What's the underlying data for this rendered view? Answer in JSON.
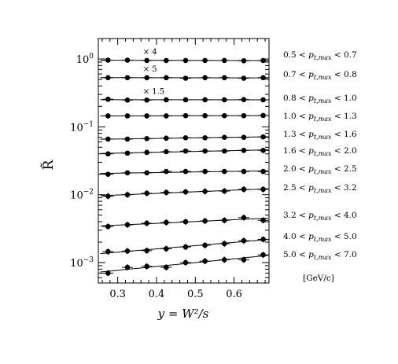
{
  "chart_data": {
    "type": "scatter",
    "title": "",
    "xlabel": "y = W²/s",
    "ylabel": "R̃",
    "xlim": [
      0.25,
      0.69
    ],
    "ylim": [
      0.0005,
      2.0
    ],
    "yscale": "log",
    "grid": false,
    "legend": "right-side text labels",
    "x": [
      0.275,
      0.325,
      0.375,
      0.425,
      0.475,
      0.525,
      0.575,
      0.625,
      0.675
    ],
    "x_tick_labels": [
      "0.3",
      "0.4",
      "0.5",
      "0.6"
    ],
    "x_ticks": [
      0.3,
      0.4,
      0.5,
      0.6
    ],
    "y_tick_labels": [
      {
        "base": "10",
        "exp": "0"
      },
      {
        "base": "10",
        "exp": "−1"
      },
      {
        "base": "10",
        "exp": "−2"
      },
      {
        "base": "10",
        "exp": "−3"
      }
    ],
    "y_ticks": [
      1,
      0.1,
      0.01,
      0.001
    ],
    "units_label": "[GeV/c]",
    "series": [
      {
        "name": "0.5 < p_t,max < 0.7",
        "range_text": "0.5 < ",
        "range_sub": "t,max",
        "range_end": " < 0.7",
        "multiplier": "× 4",
        "values": [
          0.96,
          0.96,
          0.95,
          0.95,
          0.95,
          0.95,
          0.95,
          0.94,
          0.95
        ]
      },
      {
        "name": "0.7 < p_t,max < 0.8",
        "range_text": "0.7 < ",
        "range_sub": "t,max",
        "range_end": " < 0.8",
        "multiplier": "× 5",
        "values": [
          0.53,
          0.53,
          0.53,
          0.53,
          0.52,
          0.53,
          0.53,
          0.52,
          0.53
        ]
      },
      {
        "name": "0.8 < p_t,max < 1.0",
        "range_text": "0.8 < ",
        "range_sub": "t,max",
        "range_end": " < 1.0",
        "multiplier": "× 1.5",
        "values": [
          0.255,
          0.248,
          0.248,
          0.25,
          0.25,
          0.25,
          0.25,
          0.252,
          0.25
        ]
      },
      {
        "name": "1.0 < p_t,max < 1.3",
        "range_text": "1.0 < ",
        "range_sub": "t,max",
        "range_end": " < 1.3",
        "multiplier": "",
        "values": [
          0.145,
          0.145,
          0.145,
          0.145,
          0.146,
          0.146,
          0.146,
          0.146,
          0.147
        ]
      },
      {
        "name": "1.3 < p_t,max < 1.6",
        "range_text": "1.3 < ",
        "range_sub": "t,max",
        "range_end": " < 1.6",
        "multiplier": "",
        "values": [
          0.066,
          0.066,
          0.067,
          0.068,
          0.069,
          0.069,
          0.07,
          0.07,
          0.071
        ]
      },
      {
        "name": "1.6 < p_t,max < 2.0",
        "range_text": "1.6 < ",
        "range_sub": "t,max",
        "range_end": " < 2.0",
        "multiplier": "",
        "values": [
          0.04,
          0.041,
          0.042,
          0.043,
          0.044,
          0.044,
          0.044,
          0.045,
          0.045
        ]
      },
      {
        "name": "2.0 < p_t,max < 2.5",
        "range_text": "2.0 < ",
        "range_sub": "t,max",
        "range_end": " < 2.5",
        "multiplier": "",
        "values": [
          0.02,
          0.021,
          0.021,
          0.022,
          0.022,
          0.022,
          0.022,
          0.022,
          0.022
        ]
      },
      {
        "name": "2.5 < p_t,max < 3.2",
        "range_text": "2.5 < ",
        "range_sub": "t,max",
        "range_end": " < 3.2",
        "multiplier": "",
        "values": [
          0.0095,
          0.01,
          0.0105,
          0.0108,
          0.011,
          0.0112,
          0.0113,
          0.012,
          0.012
        ]
      },
      {
        "name": "3.2 < p_t,max < 4.0",
        "range_text": "3.2 < ",
        "range_sub": "t,max",
        "range_end": " < 4.0",
        "multiplier": "",
        "values": [
          0.0034,
          0.0036,
          0.0038,
          0.0039,
          0.004,
          0.0041,
          0.0042,
          0.0046,
          0.0042
        ]
      },
      {
        "name": "4.0 < p_t,max < 5.0",
        "range_text": "4.0 < ",
        "range_sub": "t,max",
        "range_end": " < 5.0",
        "multiplier": "",
        "values": [
          0.00145,
          0.00148,
          0.0015,
          0.0016,
          0.0017,
          0.0018,
          0.0019,
          0.0021,
          0.0022
        ]
      },
      {
        "name": "5.0 < p_t,max < 7.0",
        "range_text": "5.0 < ",
        "range_sub": "t,max",
        "range_end": " < 7.0",
        "multiplier": "",
        "values": [
          0.0007,
          0.00085,
          0.00088,
          0.00085,
          0.001,
          0.00105,
          0.0011,
          0.0011,
          0.0013
        ]
      }
    ]
  }
}
